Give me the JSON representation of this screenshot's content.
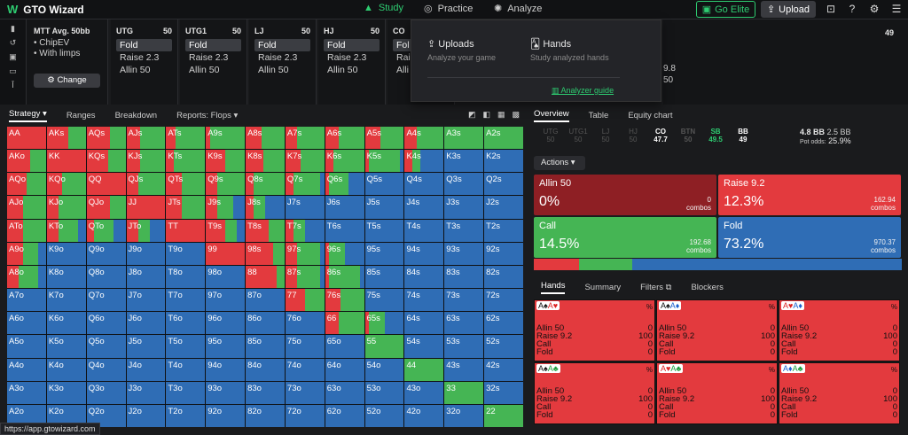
{
  "app": {
    "logo": "W",
    "title": "GTO Wizard"
  },
  "nav": {
    "study": "Study",
    "practice": "Practice",
    "analyze": "Analyze",
    "elite": "Go Elite",
    "upload": "Upload"
  },
  "config": {
    "game": "MTT",
    "avg": "Avg. 50bb",
    "opt1": "• ChipEV",
    "opt2": "• With limps",
    "change": "Change"
  },
  "positions": [
    {
      "name": "UTG",
      "stack": "50",
      "actions": [
        "Fold",
        "Raise 2.3",
        "Allin 50"
      ]
    },
    {
      "name": "UTG1",
      "stack": "50",
      "actions": [
        "Fold",
        "Raise 2.3",
        "Allin 50"
      ]
    },
    {
      "name": "LJ",
      "stack": "50",
      "actions": [
        "Fold",
        "Raise 2.3",
        "Allin 50"
      ]
    },
    {
      "name": "HJ",
      "stack": "50",
      "actions": [
        "Fold",
        "Raise 2.3",
        "Allin 50"
      ]
    },
    {
      "name": "CO",
      "stack": "",
      "actions": [
        "Fol",
        "Rai",
        "Alli"
      ]
    }
  ],
  "rightpos": {
    "stack": "49",
    "val": "9.8",
    "val2": "50"
  },
  "dropdown": {
    "uploads": "Uploads",
    "uploads_sub": "Analyze your game",
    "hands": "Hands",
    "hands_sub": "Study analyzed hands",
    "guide": "Analyzer guide"
  },
  "lefttabs": {
    "strategy": "Strategy",
    "ranges": "Ranges",
    "breakdown": "Breakdown",
    "reports": "Reports: Flops"
  },
  "righttabs": {
    "overview": "Overview",
    "table": "Table",
    "equity": "Equity chart"
  },
  "seats": [
    {
      "n": "UTG",
      "v": "50"
    },
    {
      "n": "UTG1",
      "v": "50"
    },
    {
      "n": "LJ",
      "v": "50"
    },
    {
      "n": "HJ",
      "v": "50"
    },
    {
      "n": "CO",
      "v": "47.7"
    },
    {
      "n": "BTN",
      "v": "50"
    },
    {
      "n": "SB",
      "v": "49.5"
    },
    {
      "n": "BB",
      "v": "49"
    }
  ],
  "pot": {
    "bb": "4.8 BB",
    "bb2": "2.5 BB",
    "odds_lbl": "Pot odds:",
    "odds": "25.9%"
  },
  "actions_label": "Actions",
  "actions": [
    {
      "name": "Allin 50",
      "pct": "0%",
      "combos": "0",
      "unit": "combos",
      "color": "#8e1f24"
    },
    {
      "name": "Raise 9.2",
      "pct": "12.3%",
      "combos": "162.94",
      "unit": "combos",
      "color": "#e33a3e"
    },
    {
      "name": "Call",
      "pct": "14.5%",
      "combos": "192.68",
      "unit": "combos",
      "color": "#45b554"
    },
    {
      "name": "Fold",
      "pct": "73.2%",
      "combos": "970.37",
      "unit": "combos",
      "color": "#2f6db5"
    }
  ],
  "freqbar": [
    {
      "frac": 0.123,
      "color": "#e33a3e"
    },
    {
      "frac": 0.145,
      "color": "#45b554"
    },
    {
      "frac": 0.732,
      "color": "#2f6db5"
    }
  ],
  "handtabs": {
    "hands": "Hands",
    "summary": "Summary",
    "filters": "Filters",
    "blockers": "Blockers"
  },
  "handcards": [
    {
      "c1": "A♠",
      "c2": "A♥",
      "s1": "#111",
      "s2": "#d22"
    },
    {
      "c1": "A♠",
      "c2": "A♦",
      "s1": "#111",
      "s2": "#1a5fd0"
    },
    {
      "c1": "A♥",
      "c2": "A♦",
      "s1": "#d22",
      "s2": "#1a5fd0"
    },
    {
      "c1": "A♠",
      "c2": "A♣",
      "s1": "#111",
      "s2": "#1a9d3a"
    },
    {
      "c1": "A♥",
      "c2": "A♣",
      "s1": "#d22",
      "s2": "#1a9d3a"
    },
    {
      "c1": "A♦",
      "c2": "A♣",
      "s1": "#1a5fd0",
      "s2": "#1a9d3a"
    }
  ],
  "handrows": {
    "pct": "%",
    "allin": "Allin 50",
    "allin_v": "0",
    "raise": "Raise 9.2",
    "raise_v": "100",
    "call": "Call",
    "call_v": "0",
    "fold": "Fold",
    "fold_v": "0"
  },
  "status_url": "https://app.gtowizard.com",
  "grid_labels": [
    [
      "AA",
      "AKs",
      "AQs",
      "AJs",
      "ATs",
      "A9s",
      "A8s",
      "A7s",
      "A6s",
      "A5s",
      "A4s",
      "A3s",
      "A2s"
    ],
    [
      "AKo",
      "KK",
      "KQs",
      "KJs",
      "KTs",
      "K9s",
      "K8s",
      "K7s",
      "K6s",
      "K5s",
      "K4s",
      "K3s",
      "K2s"
    ],
    [
      "AQo",
      "KQo",
      "QQ",
      "QJs",
      "QTs",
      "Q9s",
      "Q8s",
      "Q7s",
      "Q6s",
      "Q5s",
      "Q4s",
      "Q3s",
      "Q2s"
    ],
    [
      "AJo",
      "KJo",
      "QJo",
      "JJ",
      "JTs",
      "J9s",
      "J8s",
      "J7s",
      "J6s",
      "J5s",
      "J4s",
      "J3s",
      "J2s"
    ],
    [
      "ATo",
      "KTo",
      "QTo",
      "JTo",
      "TT",
      "T9s",
      "T8s",
      "T7s",
      "T6s",
      "T5s",
      "T4s",
      "T3s",
      "T2s"
    ],
    [
      "A9o",
      "K9o",
      "Q9o",
      "J9o",
      "T9o",
      "99",
      "98s",
      "97s",
      "96s",
      "95s",
      "94s",
      "93s",
      "92s"
    ],
    [
      "A8o",
      "K8o",
      "Q8o",
      "J8o",
      "T8o",
      "98o",
      "88",
      "87s",
      "86s",
      "85s",
      "84s",
      "83s",
      "82s"
    ],
    [
      "A7o",
      "K7o",
      "Q7o",
      "J7o",
      "T7o",
      "97o",
      "87o",
      "77",
      "76s",
      "75s",
      "74s",
      "73s",
      "72s"
    ],
    [
      "A6o",
      "K6o",
      "Q6o",
      "J6o",
      "T6o",
      "96o",
      "86o",
      "76o",
      "66",
      "65s",
      "64s",
      "63s",
      "62s"
    ],
    [
      "A5o",
      "K5o",
      "Q5o",
      "J5o",
      "T5o",
      "95o",
      "85o",
      "75o",
      "65o",
      "55",
      "54s",
      "53s",
      "52s"
    ],
    [
      "A4o",
      "K4o",
      "Q4o",
      "J4o",
      "T4o",
      "94o",
      "84o",
      "74o",
      "64o",
      "54o",
      "44",
      "43s",
      "42s"
    ],
    [
      "A3o",
      "K3o",
      "Q3o",
      "J3o",
      "T3o",
      "93o",
      "83o",
      "73o",
      "63o",
      "53o",
      "43o",
      "33",
      "32s"
    ],
    [
      "A2o",
      "K2o",
      "Q2o",
      "J2o",
      "T2o",
      "92o",
      "82o",
      "72o",
      "62o",
      "52o",
      "42o",
      "32o",
      "22"
    ]
  ],
  "grid_strategy": [
    [
      [
        1,
        0,
        0
      ],
      [
        0.55,
        0.45,
        0
      ],
      [
        0.6,
        0.4,
        0
      ],
      [
        0.35,
        0.65,
        0
      ],
      [
        0.25,
        0.75,
        0
      ],
      [
        0.1,
        0.9,
        0
      ],
      [
        0.4,
        0.6,
        0
      ],
      [
        0.3,
        0.7,
        0
      ],
      [
        0.35,
        0.65,
        0
      ],
      [
        0.4,
        0.6,
        0
      ],
      [
        0.3,
        0.7,
        0
      ],
      [
        0,
        1,
        0
      ],
      [
        0,
        1,
        0
      ]
    ],
    [
      [
        0.6,
        0.4,
        0
      ],
      [
        1,
        0,
        0
      ],
      [
        0.55,
        0.45,
        0
      ],
      [
        0.35,
        0.65,
        0
      ],
      [
        0.2,
        0.8,
        0
      ],
      [
        0.5,
        0.5,
        0
      ],
      [
        0.45,
        0.55,
        0
      ],
      [
        0.4,
        0.6,
        0
      ],
      [
        0.2,
        0.8,
        0
      ],
      [
        0.1,
        0.8,
        0.1
      ],
      [
        0.2,
        0.2,
        0.6
      ],
      [
        0,
        0,
        1
      ],
      [
        0,
        0,
        1
      ]
    ],
    [
      [
        0.5,
        0.5,
        0
      ],
      [
        0.4,
        0.6,
        0
      ],
      [
        1,
        0,
        0
      ],
      [
        0.3,
        0.7,
        0
      ],
      [
        0.4,
        0.6,
        0
      ],
      [
        0.3,
        0.7,
        0
      ],
      [
        0.2,
        0.8,
        0
      ],
      [
        0.2,
        0.7,
        0.1
      ],
      [
        0.1,
        0.5,
        0.4
      ],
      [
        0,
        0,
        1
      ],
      [
        0,
        0,
        1
      ],
      [
        0,
        0,
        1
      ],
      [
        0,
        0,
        1
      ]
    ],
    [
      [
        0.4,
        0.6,
        0
      ],
      [
        0.3,
        0.7,
        0
      ],
      [
        0.6,
        0.4,
        0
      ],
      [
        1,
        0,
        0
      ],
      [
        0.4,
        0.6,
        0
      ],
      [
        0.3,
        0.4,
        0.3
      ],
      [
        0.2,
        0.3,
        0.5
      ],
      [
        0,
        0,
        1
      ],
      [
        0,
        0,
        1
      ],
      [
        0,
        0,
        1
      ],
      [
        0,
        0,
        1
      ],
      [
        0,
        0,
        1
      ],
      [
        0,
        0,
        1
      ]
    ],
    [
      [
        0.4,
        0.6,
        0
      ],
      [
        0.3,
        0.5,
        0.2
      ],
      [
        0.2,
        0.5,
        0.3
      ],
      [
        0.3,
        0.3,
        0.4
      ],
      [
        1,
        0,
        0
      ],
      [
        0.5,
        0.3,
        0.2
      ],
      [
        0.6,
        0.4,
        0
      ],
      [
        0.2,
        0.3,
        0.5
      ],
      [
        0,
        0,
        1
      ],
      [
        0,
        0,
        1
      ],
      [
        0,
        0,
        1
      ],
      [
        0,
        0,
        1
      ],
      [
        0,
        0,
        1
      ]
    ],
    [
      [
        0.4,
        0.4,
        0.2
      ],
      [
        0,
        0,
        1
      ],
      [
        0,
        0,
        1
      ],
      [
        0,
        0,
        1
      ],
      [
        0,
        0,
        1
      ],
      [
        1,
        0,
        0
      ],
      [
        0.7,
        0.3,
        0
      ],
      [
        0.3,
        0.6,
        0.1
      ],
      [
        0.1,
        0.4,
        0.5
      ],
      [
        0,
        0,
        1
      ],
      [
        0,
        0,
        1
      ],
      [
        0,
        0,
        1
      ],
      [
        0,
        0,
        1
      ]
    ],
    [
      [
        0.3,
        0.5,
        0.2
      ],
      [
        0,
        0,
        1
      ],
      [
        0,
        0,
        1
      ],
      [
        0,
        0,
        1
      ],
      [
        0,
        0,
        1
      ],
      [
        0,
        0,
        1
      ],
      [
        0.8,
        0.2,
        0
      ],
      [
        0.3,
        0.6,
        0.1
      ],
      [
        0.1,
        0.8,
        0.1
      ],
      [
        0,
        0,
        1
      ],
      [
        0,
        0,
        1
      ],
      [
        0,
        0,
        1
      ],
      [
        0,
        0,
        1
      ]
    ],
    [
      [
        0,
        0,
        1
      ],
      [
        0,
        0,
        1
      ],
      [
        0,
        0,
        1
      ],
      [
        0,
        0,
        1
      ],
      [
        0,
        0,
        1
      ],
      [
        0,
        0,
        1
      ],
      [
        0,
        0,
        1
      ],
      [
        0.5,
        0.5,
        0
      ],
      [
        0.4,
        0.6,
        0
      ],
      [
        0,
        0,
        1
      ],
      [
        0,
        0,
        1
      ],
      [
        0,
        0,
        1
      ],
      [
        0,
        0,
        1
      ]
    ],
    [
      [
        0,
        0,
        1
      ],
      [
        0,
        0,
        1
      ],
      [
        0,
        0,
        1
      ],
      [
        0,
        0,
        1
      ],
      [
        0,
        0,
        1
      ],
      [
        0,
        0,
        1
      ],
      [
        0,
        0,
        1
      ],
      [
        0,
        0,
        1
      ],
      [
        0.35,
        0.65,
        0
      ],
      [
        0.1,
        0.4,
        0.5
      ],
      [
        0,
        0,
        1
      ],
      [
        0,
        0,
        1
      ],
      [
        0,
        0,
        1
      ]
    ],
    [
      [
        0,
        0,
        1
      ],
      [
        0,
        0,
        1
      ],
      [
        0,
        0,
        1
      ],
      [
        0,
        0,
        1
      ],
      [
        0,
        0,
        1
      ],
      [
        0,
        0,
        1
      ],
      [
        0,
        0,
        1
      ],
      [
        0,
        0,
        1
      ],
      [
        0,
        0,
        1
      ],
      [
        0,
        1,
        0
      ],
      [
        0,
        0,
        1
      ],
      [
        0,
        0,
        1
      ],
      [
        0,
        0,
        1
      ]
    ],
    [
      [
        0,
        0,
        1
      ],
      [
        0,
        0,
        1
      ],
      [
        0,
        0,
        1
      ],
      [
        0,
        0,
        1
      ],
      [
        0,
        0,
        1
      ],
      [
        0,
        0,
        1
      ],
      [
        0,
        0,
        1
      ],
      [
        0,
        0,
        1
      ],
      [
        0,
        0,
        1
      ],
      [
        0,
        0,
        1
      ],
      [
        0,
        1,
        0
      ],
      [
        0,
        0,
        1
      ],
      [
        0,
        0,
        1
      ]
    ],
    [
      [
        0,
        0,
        1
      ],
      [
        0,
        0,
        1
      ],
      [
        0,
        0,
        1
      ],
      [
        0,
        0,
        1
      ],
      [
        0,
        0,
        1
      ],
      [
        0,
        0,
        1
      ],
      [
        0,
        0,
        1
      ],
      [
        0,
        0,
        1
      ],
      [
        0,
        0,
        1
      ],
      [
        0,
        0,
        1
      ],
      [
        0,
        0,
        1
      ],
      [
        0,
        1,
        0
      ],
      [
        0,
        0,
        1
      ]
    ],
    [
      [
        0,
        0,
        1
      ],
      [
        0,
        0,
        1
      ],
      [
        0,
        0,
        1
      ],
      [
        0,
        0,
        1
      ],
      [
        0,
        0,
        1
      ],
      [
        0,
        0,
        1
      ],
      [
        0,
        0,
        1
      ],
      [
        0,
        0,
        1
      ],
      [
        0,
        0,
        1
      ],
      [
        0,
        0,
        1
      ],
      [
        0,
        0,
        1
      ],
      [
        0,
        0,
        1
      ],
      [
        0,
        1,
        0
      ]
    ]
  ],
  "colors": {
    "raise": "#e33a3e",
    "call": "#45b554",
    "fold": "#2f6db5",
    "accent": "#2ecc71"
  }
}
